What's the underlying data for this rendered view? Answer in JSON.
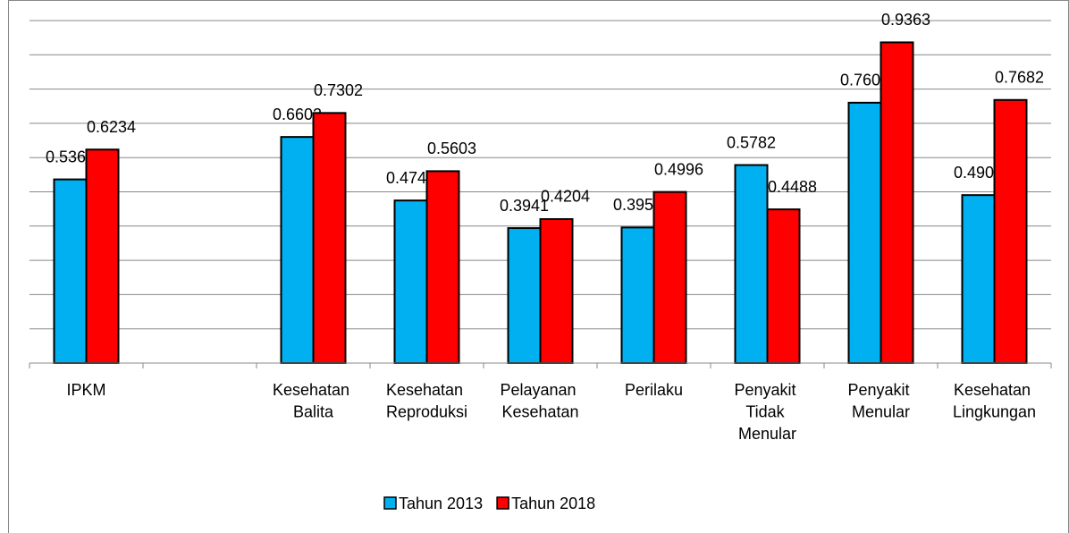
{
  "chart_data": {
    "type": "bar",
    "categories": [
      "IPKM",
      null,
      "Kesehatan Balita",
      "Kesehatan Reproduksi",
      "Pelayanan Kesehatan",
      "Perilaku",
      "Penyakit Tidak Menular",
      "Penyakit Menular",
      "Kesehatan Lingkungan"
    ],
    "series": [
      {
        "name": "Tahun 2013",
        "color": "#00b0f0",
        "values": [
          0.5363,
          null,
          0.6602,
          0.4747,
          0.3941,
          0.3959,
          0.5782,
          0.7602,
          0.4904
        ]
      },
      {
        "name": "Tahun 2018",
        "color": "#ff0000",
        "values": [
          0.6234,
          null,
          0.7302,
          0.5603,
          0.4204,
          0.4996,
          0.4488,
          0.9363,
          0.7682
        ]
      }
    ],
    "ylim": [
      0,
      1
    ],
    "yticks": [
      0,
      0.1,
      0.2,
      0.3,
      0.4,
      0.5,
      0.6,
      0.7,
      0.8,
      0.9,
      1
    ],
    "grid": true,
    "legend": "bottom"
  }
}
